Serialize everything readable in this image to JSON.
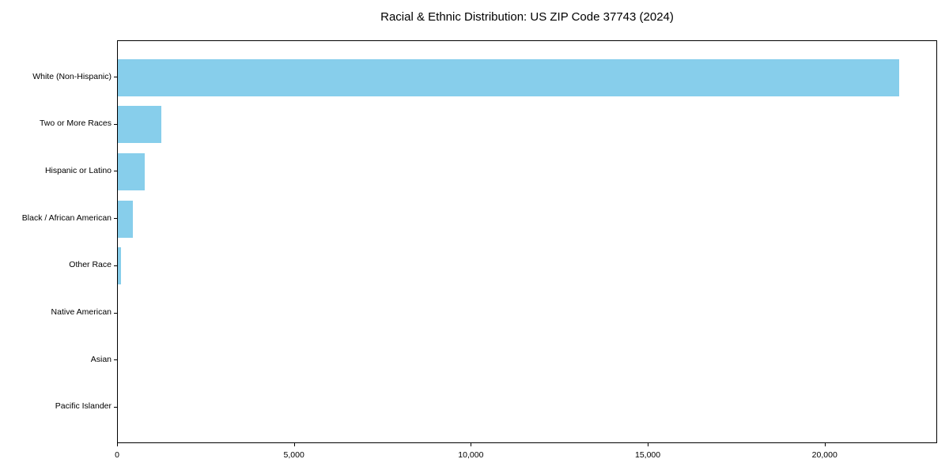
{
  "title": "Racial & Ethnic Distribution: US ZIP Code 37743 (2024)",
  "colors": {
    "bar": "#87CEEB",
    "axis": "#000000",
    "text": "#000000",
    "background": "#ffffff"
  },
  "chart_data": {
    "type": "bar",
    "orientation": "horizontal",
    "title": "Racial & Ethnic Distribution: US ZIP Code 37743 (2024)",
    "xlabel": "",
    "ylabel": "",
    "categories": [
      "White (Non-Hispanic)",
      "Two or More Races",
      "Hispanic or Latino",
      "Black / African American",
      "Other Race",
      "Native American",
      "Asian",
      "Pacific Islander"
    ],
    "values": [
      22090,
      1230,
      770,
      430,
      80,
      0,
      0,
      0
    ],
    "bar_color": "#87CEEB",
    "xlim": [
      0,
      23180
    ],
    "x_ticks": [
      0,
      5000,
      10000,
      15000,
      20000
    ],
    "x_tick_labels": [
      "0",
      "5,000",
      "10,000",
      "15,000",
      "20,000"
    ],
    "grid": false,
    "legend": null
  }
}
